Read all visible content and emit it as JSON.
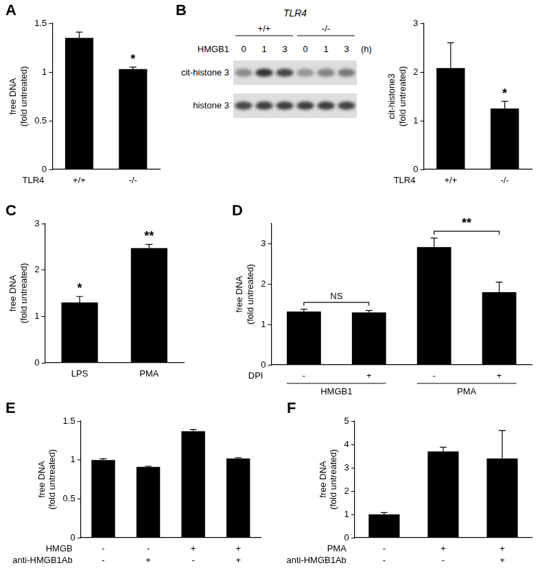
{
  "chart_data": [
    {
      "type": "bar",
      "title": "A",
      "category_label": "TLR4",
      "categories": [
        "+/+",
        "-/-"
      ],
      "values": [
        1.35,
        1.03
      ],
      "errors": [
        0.06,
        0.02
      ],
      "color": "#000000",
      "ylabel": [
        "free DNA",
        "(fold untreated)"
      ],
      "ylim": [
        0,
        1.5
      ],
      "yticks": [
        0,
        0.5,
        1,
        1.5
      ],
      "grid": false,
      "annotations": [
        {
          "at": 1,
          "text": "*"
        }
      ]
    },
    {
      "type": "bar",
      "category_label": "TLR4",
      "categories": [
        "+/+",
        "-/-"
      ],
      "values": [
        2.08,
        1.25
      ],
      "errors": [
        0.52,
        0.15
      ],
      "color": "#000000",
      "ylabel": [
        "cit-histone3",
        "(fold untreated)"
      ],
      "ylim": [
        0,
        3
      ],
      "yticks": [
        0,
        1,
        2,
        3
      ],
      "grid": false,
      "annotations": [
        {
          "at": 1,
          "text": "*"
        }
      ]
    },
    {
      "type": "bar",
      "title": "C",
      "categories": [
        "LPS",
        "PMA"
      ],
      "values": [
        1.3,
        2.47
      ],
      "errors": [
        0.13,
        0.08
      ],
      "color": "#000000",
      "ylabel": [
        "free DNA",
        "(fold untreated)"
      ],
      "ylim": [
        0,
        3
      ],
      "yticks": [
        0,
        1,
        2,
        3
      ],
      "grid": false,
      "annotations": [
        {
          "at": 0,
          "text": "*"
        },
        {
          "at": 1,
          "text": "**"
        }
      ]
    },
    {
      "type": "bar",
      "title": "D",
      "category_label": "DPI",
      "categories": [
        "-",
        "+",
        "-",
        "+"
      ],
      "groups": [
        {
          "label": "HMGB1",
          "from": 0,
          "to": 1
        },
        {
          "label": "PMA",
          "from": 2,
          "to": 3
        }
      ],
      "values": [
        1.32,
        1.3,
        2.92,
        1.8
      ],
      "errors": [
        0.06,
        0.05,
        0.22,
        0.25
      ],
      "color": "#000000",
      "ylabel": [
        "free DNA",
        "(fold untreated)"
      ],
      "ylim": [
        0,
        3.5
      ],
      "yticks": [
        0,
        1,
        2,
        3
      ],
      "grid": false,
      "annotations": [
        {
          "from": 0,
          "to": 1,
          "text": "NS"
        },
        {
          "from": 2,
          "to": 3,
          "text": "**"
        }
      ]
    },
    {
      "type": "bar",
      "title": "E",
      "category_label": "HMGB",
      "categories": [
        "-",
        "-",
        "+",
        "+"
      ],
      "category_rows": [
        {
          "label": "anti-HMGB1Ab",
          "values": [
            "-",
            "+",
            "-",
            "+"
          ]
        }
      ],
      "values": [
        1.0,
        0.91,
        1.37,
        1.02
      ],
      "errors": [
        0.015,
        0.01,
        0.02,
        0.01
      ],
      "color": "#000000",
      "ylabel": [
        "free DNA",
        "(fold untreated)"
      ],
      "ylim": [
        0,
        1.5
      ],
      "yticks": [
        0,
        0.5,
        1,
        1.5
      ],
      "grid": false
    },
    {
      "type": "bar",
      "title": "F",
      "category_label": "PMA",
      "categories": [
        "-",
        "+",
        "+"
      ],
      "category_rows": [
        {
          "label": "anti-HMGB1Ab",
          "values": [
            "-",
            "-",
            "+"
          ]
        }
      ],
      "values": [
        1.0,
        3.7,
        3.4
      ],
      "errors": [
        0.08,
        0.18,
        1.2
      ],
      "color": "#000000",
      "ylabel": [
        "free DNA",
        "(fold untreated)"
      ],
      "ylim": [
        0,
        5
      ],
      "yticks": [
        0,
        1,
        2,
        3,
        4,
        5
      ],
      "grid": false
    }
  ],
  "blot": {
    "title": "B",
    "header": "TLR4",
    "groups": [
      {
        "label": "+/+",
        "lanes": 3
      },
      {
        "label": "-/-",
        "lanes": 3
      }
    ],
    "treatment": {
      "label": "HMGB1",
      "values": [
        0,
        1,
        3,
        0,
        1,
        3
      ],
      "unit": "(h)"
    },
    "rows": [
      {
        "label": "cit-histone 3",
        "intensity": [
          0.45,
          0.9,
          0.8,
          0.4,
          0.5,
          0.55
        ]
      },
      {
        "label": "histone 3",
        "intensity": [
          0.8,
          0.85,
          0.85,
          0.85,
          0.85,
          0.82
        ]
      }
    ]
  }
}
